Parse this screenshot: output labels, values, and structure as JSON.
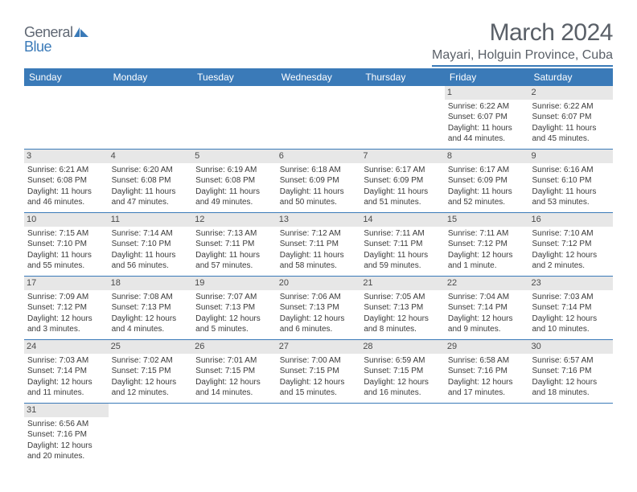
{
  "logo": {
    "text1": "General",
    "text2": "Blue"
  },
  "title": "March 2024",
  "location": "Mayari, Holguin Province, Cuba",
  "header_bg": "#3a7ab8",
  "weekdays": [
    "Sunday",
    "Monday",
    "Tuesday",
    "Wednesday",
    "Thursday",
    "Friday",
    "Saturday"
  ],
  "weeks": [
    [
      null,
      null,
      null,
      null,
      null,
      {
        "n": "1",
        "sr": "6:22 AM",
        "ss": "6:07 PM",
        "dl": "11 hours and 44 minutes."
      },
      {
        "n": "2",
        "sr": "6:22 AM",
        "ss": "6:07 PM",
        "dl": "11 hours and 45 minutes."
      }
    ],
    [
      {
        "n": "3",
        "sr": "6:21 AM",
        "ss": "6:08 PM",
        "dl": "11 hours and 46 minutes."
      },
      {
        "n": "4",
        "sr": "6:20 AM",
        "ss": "6:08 PM",
        "dl": "11 hours and 47 minutes."
      },
      {
        "n": "5",
        "sr": "6:19 AM",
        "ss": "6:08 PM",
        "dl": "11 hours and 49 minutes."
      },
      {
        "n": "6",
        "sr": "6:18 AM",
        "ss": "6:09 PM",
        "dl": "11 hours and 50 minutes."
      },
      {
        "n": "7",
        "sr": "6:17 AM",
        "ss": "6:09 PM",
        "dl": "11 hours and 51 minutes."
      },
      {
        "n": "8",
        "sr": "6:17 AM",
        "ss": "6:09 PM",
        "dl": "11 hours and 52 minutes."
      },
      {
        "n": "9",
        "sr": "6:16 AM",
        "ss": "6:10 PM",
        "dl": "11 hours and 53 minutes."
      }
    ],
    [
      {
        "n": "10",
        "sr": "7:15 AM",
        "ss": "7:10 PM",
        "dl": "11 hours and 55 minutes."
      },
      {
        "n": "11",
        "sr": "7:14 AM",
        "ss": "7:10 PM",
        "dl": "11 hours and 56 minutes."
      },
      {
        "n": "12",
        "sr": "7:13 AM",
        "ss": "7:11 PM",
        "dl": "11 hours and 57 minutes."
      },
      {
        "n": "13",
        "sr": "7:12 AM",
        "ss": "7:11 PM",
        "dl": "11 hours and 58 minutes."
      },
      {
        "n": "14",
        "sr": "7:11 AM",
        "ss": "7:11 PM",
        "dl": "11 hours and 59 minutes."
      },
      {
        "n": "15",
        "sr": "7:11 AM",
        "ss": "7:12 PM",
        "dl": "12 hours and 1 minute."
      },
      {
        "n": "16",
        "sr": "7:10 AM",
        "ss": "7:12 PM",
        "dl": "12 hours and 2 minutes."
      }
    ],
    [
      {
        "n": "17",
        "sr": "7:09 AM",
        "ss": "7:12 PM",
        "dl": "12 hours and 3 minutes."
      },
      {
        "n": "18",
        "sr": "7:08 AM",
        "ss": "7:13 PM",
        "dl": "12 hours and 4 minutes."
      },
      {
        "n": "19",
        "sr": "7:07 AM",
        "ss": "7:13 PM",
        "dl": "12 hours and 5 minutes."
      },
      {
        "n": "20",
        "sr": "7:06 AM",
        "ss": "7:13 PM",
        "dl": "12 hours and 6 minutes."
      },
      {
        "n": "21",
        "sr": "7:05 AM",
        "ss": "7:13 PM",
        "dl": "12 hours and 8 minutes."
      },
      {
        "n": "22",
        "sr": "7:04 AM",
        "ss": "7:14 PM",
        "dl": "12 hours and 9 minutes."
      },
      {
        "n": "23",
        "sr": "7:03 AM",
        "ss": "7:14 PM",
        "dl": "12 hours and 10 minutes."
      }
    ],
    [
      {
        "n": "24",
        "sr": "7:03 AM",
        "ss": "7:14 PM",
        "dl": "12 hours and 11 minutes."
      },
      {
        "n": "25",
        "sr": "7:02 AM",
        "ss": "7:15 PM",
        "dl": "12 hours and 12 minutes."
      },
      {
        "n": "26",
        "sr": "7:01 AM",
        "ss": "7:15 PM",
        "dl": "12 hours and 14 minutes."
      },
      {
        "n": "27",
        "sr": "7:00 AM",
        "ss": "7:15 PM",
        "dl": "12 hours and 15 minutes."
      },
      {
        "n": "28",
        "sr": "6:59 AM",
        "ss": "7:15 PM",
        "dl": "12 hours and 16 minutes."
      },
      {
        "n": "29",
        "sr": "6:58 AM",
        "ss": "7:16 PM",
        "dl": "12 hours and 17 minutes."
      },
      {
        "n": "30",
        "sr": "6:57 AM",
        "ss": "7:16 PM",
        "dl": "12 hours and 18 minutes."
      }
    ],
    [
      {
        "n": "31",
        "sr": "6:56 AM",
        "ss": "7:16 PM",
        "dl": "12 hours and 20 minutes."
      },
      null,
      null,
      null,
      null,
      null,
      null
    ]
  ],
  "labels": {
    "sunrise": "Sunrise:",
    "sunset": "Sunset:",
    "daylight": "Daylight:"
  }
}
